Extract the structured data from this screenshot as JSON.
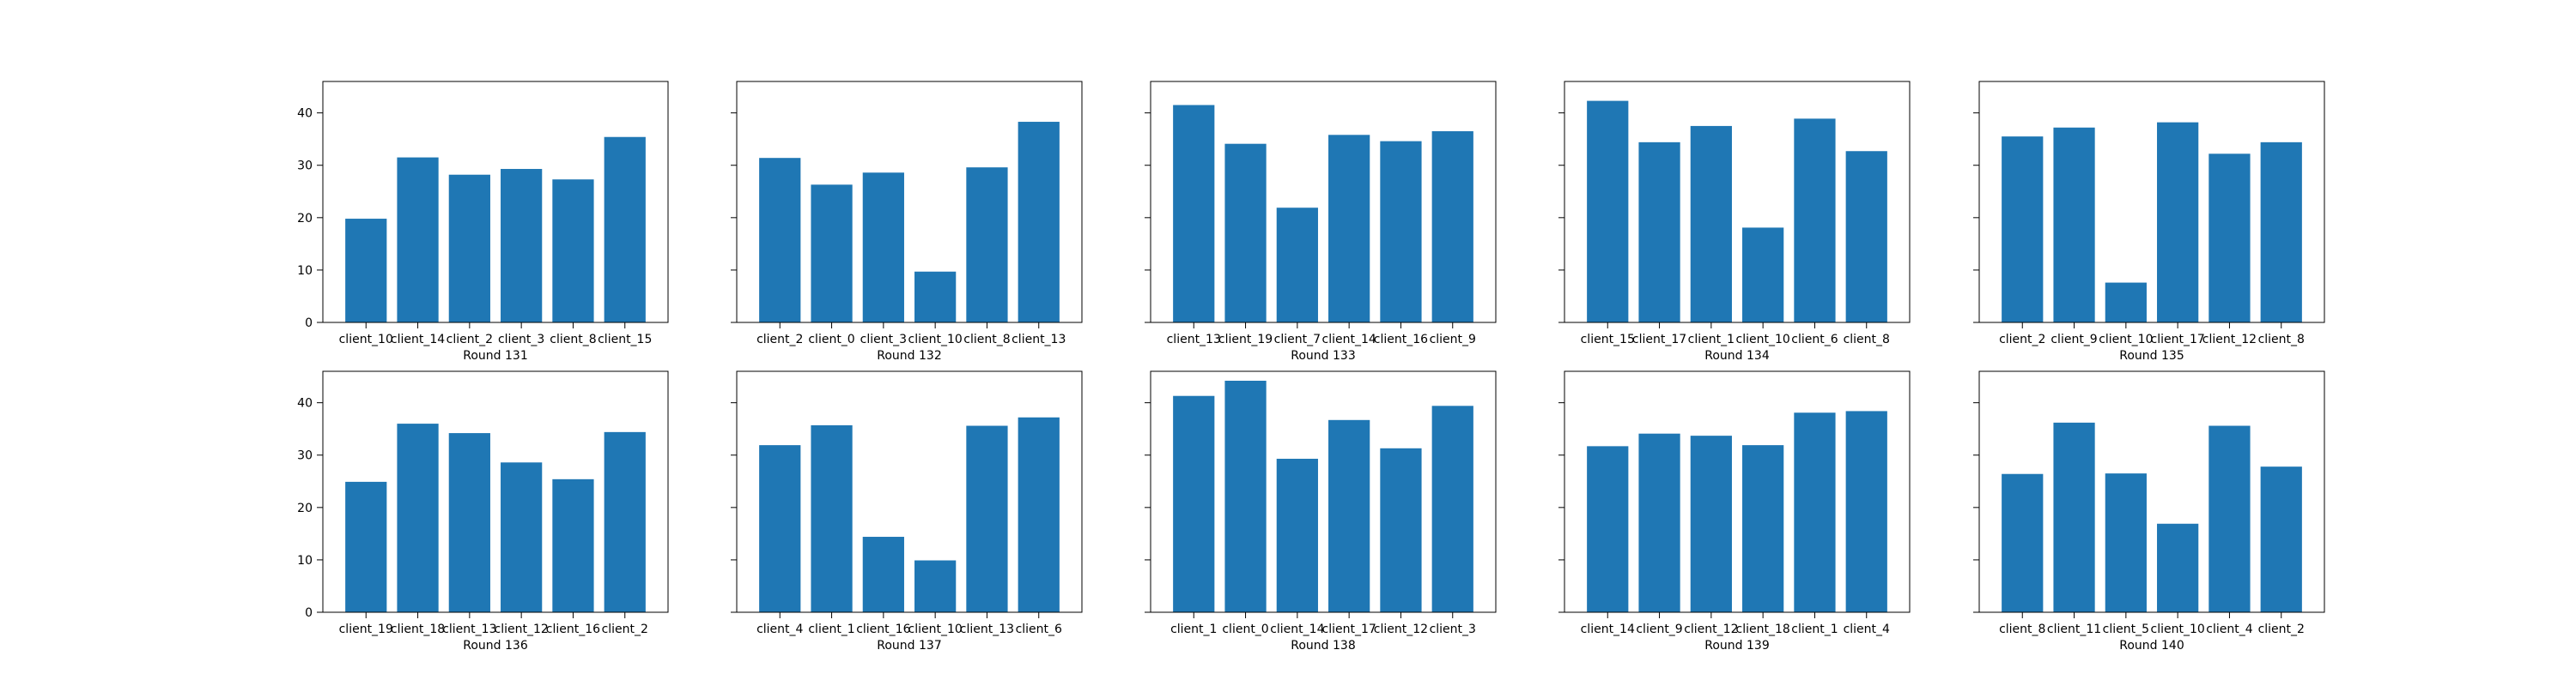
{
  "chart_data": [
    {
      "type": "bar",
      "title": "Round 131",
      "xlabel": "Round 131",
      "ylabel": "",
      "ylim": [
        0,
        46
      ],
      "yticks": [
        0,
        10,
        20,
        30,
        40
      ],
      "categories": [
        "client_10",
        "client_14",
        "client_2",
        "client_3",
        "client_8",
        "client_15"
      ],
      "values": [
        19.8,
        31.5,
        28.2,
        29.3,
        27.3,
        35.4
      ],
      "color": "#1f77b4"
    },
    {
      "type": "bar",
      "title": "Round 132",
      "xlabel": "Round 132",
      "ylabel": "",
      "ylim": [
        0,
        46
      ],
      "yticks": [
        0,
        10,
        20,
        30,
        40
      ],
      "categories": [
        "client_2",
        "client_0",
        "client_3",
        "client_10",
        "client_8",
        "client_13"
      ],
      "values": [
        31.4,
        26.3,
        28.6,
        9.7,
        29.6,
        38.3
      ],
      "color": "#1f77b4"
    },
    {
      "type": "bar",
      "title": "Round 133",
      "xlabel": "Round 133",
      "ylabel": "",
      "ylim": [
        0,
        46
      ],
      "yticks": [
        0,
        10,
        20,
        30,
        40
      ],
      "categories": [
        "client_13",
        "client_19",
        "client_7",
        "client_14",
        "client_16",
        "client_9"
      ],
      "values": [
        41.5,
        34.1,
        21.9,
        35.8,
        34.6,
        36.5
      ],
      "color": "#1f77b4"
    },
    {
      "type": "bar",
      "title": "Round 134",
      "xlabel": "Round 134",
      "ylabel": "",
      "ylim": [
        0,
        46
      ],
      "yticks": [
        0,
        10,
        20,
        30,
        40
      ],
      "categories": [
        "client_15",
        "client_17",
        "client_1",
        "client_10",
        "client_6",
        "client_8"
      ],
      "values": [
        42.3,
        34.4,
        37.5,
        18.1,
        38.9,
        32.7
      ],
      "color": "#1f77b4"
    },
    {
      "type": "bar",
      "title": "Round 135",
      "xlabel": "Round 135",
      "ylabel": "",
      "ylim": [
        0,
        46
      ],
      "yticks": [
        0,
        10,
        20,
        30,
        40
      ],
      "categories": [
        "client_2",
        "client_9",
        "client_10",
        "client_17",
        "client_12",
        "client_8"
      ],
      "values": [
        35.5,
        37.2,
        7.6,
        38.2,
        32.2,
        34.4
      ],
      "color": "#1f77b4"
    },
    {
      "type": "bar",
      "title": "Round 136",
      "xlabel": "Round 136",
      "ylabel": "",
      "ylim": [
        0,
        46
      ],
      "yticks": [
        0,
        10,
        20,
        30,
        40
      ],
      "categories": [
        "client_19",
        "client_18",
        "client_13",
        "client_12",
        "client_16",
        "client_2"
      ],
      "values": [
        24.9,
        36.0,
        34.2,
        28.6,
        25.4,
        34.4
      ],
      "color": "#1f77b4"
    },
    {
      "type": "bar",
      "title": "Round 137",
      "xlabel": "Round 137",
      "ylabel": "",
      "ylim": [
        0,
        46
      ],
      "yticks": [
        0,
        10,
        20,
        30,
        40
      ],
      "categories": [
        "client_4",
        "client_1",
        "client_16",
        "client_10",
        "client_13",
        "client_6"
      ],
      "values": [
        31.9,
        35.7,
        14.4,
        9.9,
        35.6,
        37.2
      ],
      "color": "#1f77b4"
    },
    {
      "type": "bar",
      "title": "Round 138",
      "xlabel": "Round 138",
      "ylabel": "",
      "ylim": [
        0,
        46
      ],
      "yticks": [
        0,
        10,
        20,
        30,
        40
      ],
      "categories": [
        "client_1",
        "client_0",
        "client_14",
        "client_17",
        "client_12",
        "client_3"
      ],
      "values": [
        41.3,
        44.2,
        29.3,
        36.7,
        31.3,
        39.4
      ],
      "color": "#1f77b4"
    },
    {
      "type": "bar",
      "title": "Round 139",
      "xlabel": "Round 139",
      "ylabel": "",
      "ylim": [
        0,
        46
      ],
      "yticks": [
        0,
        10,
        20,
        30,
        40
      ],
      "categories": [
        "client_14",
        "client_9",
        "client_12",
        "client_18",
        "client_1",
        "client_4"
      ],
      "values": [
        31.7,
        34.1,
        33.7,
        31.9,
        38.1,
        38.4
      ],
      "color": "#1f77b4"
    },
    {
      "type": "bar",
      "title": "Round 140",
      "xlabel": "Round 140",
      "ylabel": "",
      "ylim": [
        0,
        46
      ],
      "yticks": [
        0,
        10,
        20,
        30,
        40
      ],
      "categories": [
        "client_8",
        "client_11",
        "client_5",
        "client_10",
        "client_4",
        "client_2"
      ],
      "values": [
        26.4,
        36.2,
        26.5,
        16.9,
        35.6,
        27.8
      ],
      "color": "#1f77b4"
    }
  ]
}
